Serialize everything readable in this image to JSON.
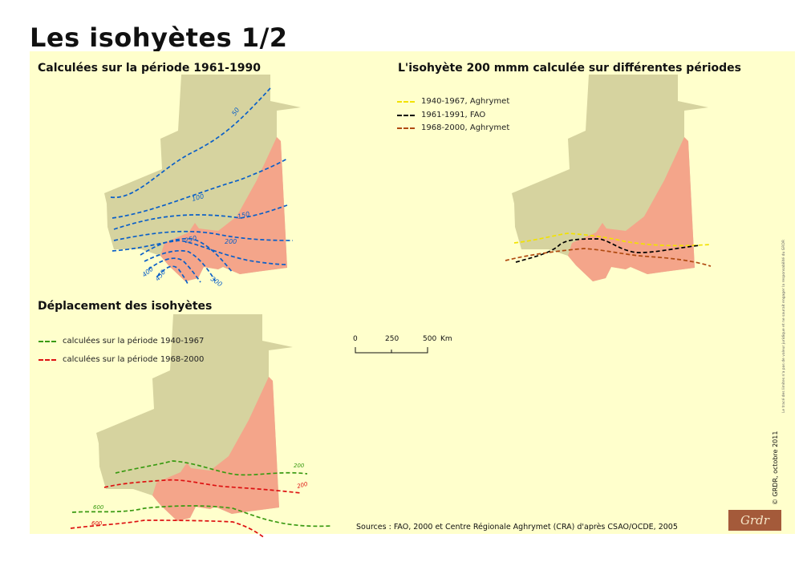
{
  "title": "Les isohyètes 1/2",
  "colors": {
    "background": "#ffffcc",
    "territory": "#d6d39f",
    "zone": "#f4a58a"
  },
  "map1": {
    "title": "Calculées sur la période 1961-1990",
    "line_color": "#0a5fc8",
    "labels": [
      "50",
      "100",
      "150",
      "200",
      "250",
      "400",
      "450",
      "300"
    ]
  },
  "map2": {
    "title": "L'isohyète 200 mmm calculée sur différentes périodes",
    "legend": [
      {
        "label": "1940-1967, Aghrymet",
        "color": "#f2e200"
      },
      {
        "label": "1961-1991, FAO",
        "color": "#000000"
      },
      {
        "label": "1968-2000, Aghrymet",
        "color": "#b04a10"
      }
    ]
  },
  "map3": {
    "title": "Déplacement des isohyètes",
    "legend": [
      {
        "label": "calculées sur la période 1940-1967",
        "color": "#3a9a12"
      },
      {
        "label": "calculées sur la période 1968-2000",
        "color": "#dd1111"
      }
    ],
    "labels": [
      "200",
      "200",
      "600",
      "600"
    ]
  },
  "scale": {
    "ticks": [
      "0",
      "250",
      "500"
    ],
    "unit": "Km"
  },
  "sources": "Sources : FAO, 2000 et Centre Régionale Aghrymet (CRA) d'après CSAO/OCDE, 2005",
  "credit": "© GRDR, octobre 2011",
  "disclaimer": "Le tracé des limites n'a pas de valeur juridique et ne saurait engager la responsabilité du GRDR",
  "logo": "Grdr"
}
